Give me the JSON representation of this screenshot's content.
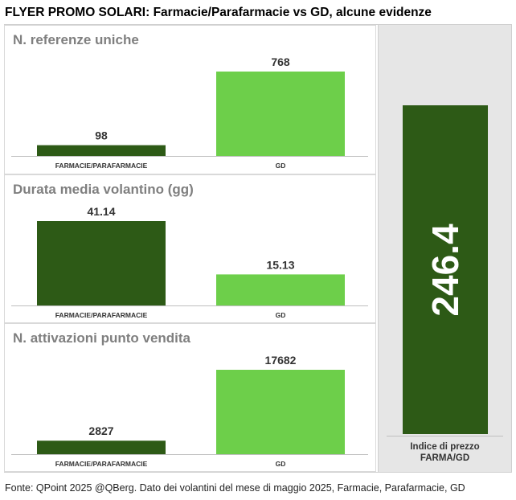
{
  "title": "FLYER PROMO SOLARI: Farmacie/Parafarmacie vs GD, alcune evidenze",
  "source": "Fonte: QPoint 2025 @QBerg. Dato dei volantini del mese di maggio 2025, Farmacie, Parafarmacie, GD",
  "colors": {
    "farmacie": "#2d5a16",
    "gd": "#6dcf4a",
    "axis": "#bfbfbf"
  },
  "chart_data": [
    {
      "type": "bar",
      "title": "N. referenze uniche",
      "categories": [
        "FARMACIE/PARAFARMACIE",
        "GD"
      ],
      "values": [
        98,
        768
      ],
      "value_labels": [
        "98",
        "768"
      ]
    },
    {
      "type": "bar",
      "title": "Durata media volantino (gg)",
      "categories": [
        "FARMACIE/PARAFARMACIE",
        "GD"
      ],
      "values": [
        41.14,
        15.13
      ],
      "value_labels": [
        "41.14",
        "15.13"
      ]
    },
    {
      "type": "bar",
      "title": "N. attivazioni punto vendita",
      "categories": [
        "FARMACIE/PARAFARMACIE",
        "GD"
      ],
      "values": [
        2827,
        17682
      ],
      "value_labels": [
        "2827",
        "17682"
      ]
    },
    {
      "type": "bar",
      "title": "",
      "categories": [
        "Indice di prezzo FARMA/GD"
      ],
      "values": [
        246.4
      ],
      "value_labels": [
        "246.4"
      ],
      "category_lines": [
        "Indice di prezzo",
        "FARMA/GD"
      ]
    }
  ]
}
